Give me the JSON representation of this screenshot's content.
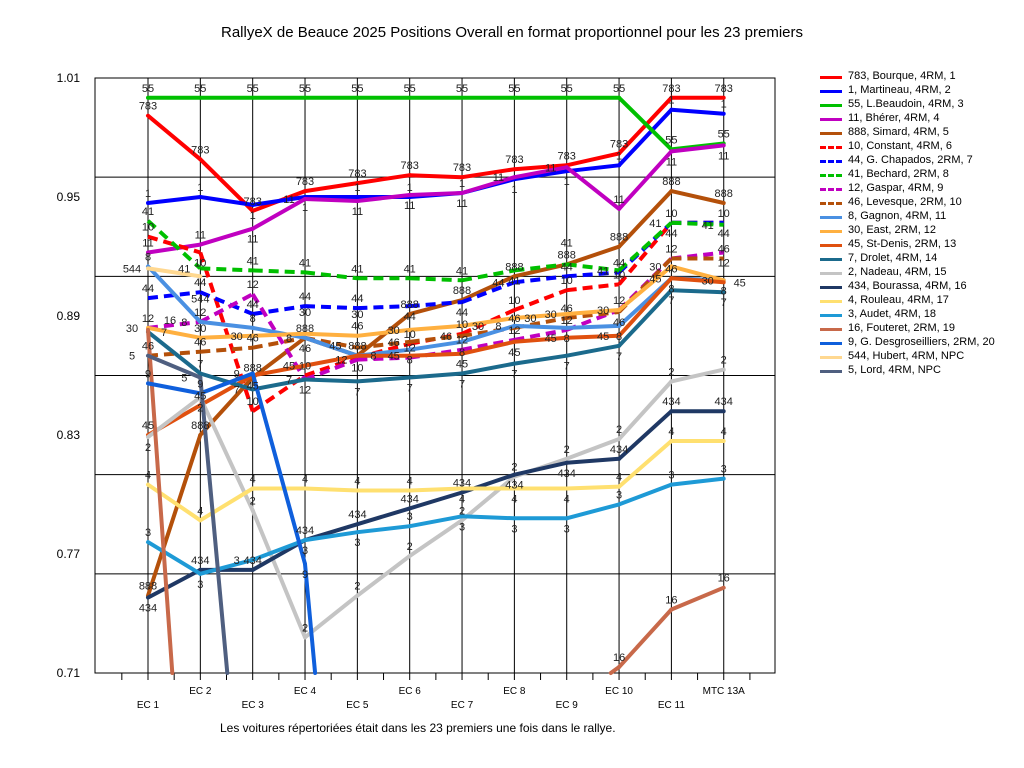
{
  "chart_data": {
    "type": "line",
    "title": "RallyeX de Beauce 2025  Positions Overall en format proportionnel pour les 23 premiers",
    "footnote": "Les voitures répertoriées était dans les 23 premiers une fois dans le rallye.",
    "xlabel": "",
    "ylabel": "",
    "categories": [
      "EC 1",
      "EC 2",
      "EC 3",
      "EC 4",
      "EC 5",
      "EC 6",
      "EC 7",
      "EC 8",
      "EC 9",
      "EC 10",
      "EC 11",
      "MTC 13A"
    ],
    "ylim": [
      0.71,
      1.01
    ],
    "y_ticks": [
      "1.01",
      "0.95",
      "0.89",
      "0.83",
      "0.77",
      "0.71"
    ],
    "grid": true,
    "legend_position": "right",
    "series": [
      {
        "name": "783, Bourque, 4RM, 1",
        "car": "783",
        "color": "#ff0000",
        "dash": false,
        "values": [
          0.991,
          0.969,
          0.943,
          0.953,
          0.957,
          0.961,
          0.96,
          0.964,
          0.966,
          0.972,
          1.0,
          1.0
        ]
      },
      {
        "name": "1, Martineau, 4RM, 2",
        "car": "1",
        "color": "#0000ff",
        "dash": false,
        "values": [
          0.947,
          0.95,
          0.946,
          0.95,
          0.95,
          0.95,
          0.952,
          0.959,
          0.963,
          0.966,
          0.994,
          0.992
        ]
      },
      {
        "name": "55, L.Beaudoin, 4RM, 3",
        "car": "55",
        "color": "#00c000",
        "dash": false,
        "values": [
          1.0,
          1.0,
          1.0,
          1.0,
          1.0,
          1.0,
          1.0,
          1.0,
          1.0,
          1.0,
          0.974,
          0.977
        ]
      },
      {
        "name": "11, Bhérer, 4RM, 4",
        "car": "11",
        "color": "#c000c0",
        "dash": false,
        "values": [
          0.922,
          0.926,
          0.934,
          0.949,
          0.948,
          0.951,
          0.952,
          0.96,
          0.965,
          0.944,
          0.973,
          0.976
        ]
      },
      {
        "name": "888, Simard, 4RM, 5",
        "car": "888",
        "color": "#b4500a",
        "dash": false,
        "values": [
          0.749,
          0.83,
          0.859,
          0.879,
          0.87,
          0.891,
          0.898,
          0.91,
          0.916,
          0.925,
          0.953,
          0.947
        ]
      },
      {
        "name": "10, Constant, 4RM, 6",
        "car": "10",
        "color": "#ff0000",
        "dash": true,
        "values": [
          0.93,
          0.922,
          0.842,
          0.86,
          0.869,
          0.876,
          0.881,
          0.893,
          0.903,
          0.906,
          0.937,
          0.937
        ]
      },
      {
        "name": "44, G. Chapados, 2RM, 7",
        "car": "44",
        "color": "#0000ff",
        "dash": true,
        "values": [
          0.899,
          0.902,
          0.891,
          0.895,
          0.894,
          0.895,
          0.897,
          0.907,
          0.91,
          0.912,
          0.937,
          0.937
        ]
      },
      {
        "name": "41, Bechard, 2RM, 8",
        "car": "41",
        "color": "#00c000",
        "dash": true,
        "values": [
          0.938,
          0.914,
          0.913,
          0.912,
          0.909,
          0.909,
          0.908,
          0.913,
          0.916,
          0.913,
          0.937,
          0.936
        ]
      },
      {
        "name": "12, Gaspar, 4RM, 9",
        "car": "12",
        "color": "#c000c0",
        "dash": true,
        "values": [
          0.884,
          0.887,
          0.901,
          0.858,
          0.868,
          0.869,
          0.873,
          0.878,
          0.883,
          0.893,
          0.919,
          0.922
        ]
      },
      {
        "name": "46, Levesque, 2RM, 10",
        "car": "46",
        "color": "#b4500a",
        "dash": true,
        "values": [
          0.87,
          0.872,
          0.874,
          0.879,
          0.874,
          0.877,
          0.88,
          0.884,
          0.889,
          0.892,
          0.919,
          0.919
        ]
      },
      {
        "name": "8, Gagnon, 4RM, 11",
        "car": "8",
        "color": "#4a90e2",
        "dash": false,
        "values": [
          0.915,
          0.887,
          0.884,
          0.879,
          0.87,
          0.873,
          0.877,
          0.885,
          0.884,
          0.885,
          0.909,
          0.908
        ]
      },
      {
        "name": "30, East, 2RM, 12",
        "car": "30",
        "color": "#ffb040",
        "dash": false,
        "values": [
          0.884,
          0.879,
          0.88,
          0.881,
          0.88,
          0.883,
          0.885,
          0.889,
          0.891,
          0.893,
          0.915,
          0.908
        ]
      },
      {
        "name": "45, St-Denis, 2RM, 13",
        "car": "45",
        "color": "#e0500f",
        "dash": false,
        "values": [
          0.83,
          0.845,
          0.86,
          0.865,
          0.87,
          0.87,
          0.871,
          0.877,
          0.879,
          0.88,
          0.909,
          0.907
        ]
      },
      {
        "name": "7, Drolet, 4RM, 14",
        "car": "7",
        "color": "#1b6a8c",
        "dash": false,
        "values": [
          0.882,
          0.861,
          0.853,
          0.858,
          0.857,
          0.859,
          0.861,
          0.866,
          0.87,
          0.875,
          0.903,
          0.902
        ]
      },
      {
        "name": "2, Nadeau, 4RM, 15",
        "car": "2",
        "color": "#c4c4c4",
        "dash": false,
        "values": [
          0.829,
          0.849,
          0.792,
          0.728,
          0.749,
          0.769,
          0.787,
          0.809,
          0.818,
          0.828,
          0.857,
          0.863
        ]
      },
      {
        "name": "434, Bourassa, 4RM, 16",
        "car": "434",
        "color": "#1f3864",
        "dash": false,
        "values": [
          0.748,
          0.762,
          0.762,
          0.777,
          0.785,
          0.793,
          0.801,
          0.81,
          0.816,
          0.818,
          0.842,
          0.842
        ]
      },
      {
        "name": "4, Rouleau, 4RM, 17",
        "car": "4",
        "color": "#ffe070",
        "dash": false,
        "values": [
          0.805,
          0.787,
          0.803,
          0.803,
          0.802,
          0.802,
          0.803,
          0.803,
          0.803,
          0.804,
          0.827,
          0.827
        ]
      },
      {
        "name": "3, Audet, 4RM, 18",
        "car": "3",
        "color": "#1e9ad6",
        "dash": false,
        "values": [
          0.776,
          0.76,
          0.767,
          0.777,
          0.781,
          0.784,
          0.789,
          0.788,
          0.788,
          0.795,
          0.805,
          0.808
        ]
      },
      {
        "name": "16, Fouteret, 2RM, 19",
        "car": "16",
        "color": "#c8694a",
        "dash": false,
        "values": [
          0.883,
          0.51,
          null,
          null,
          null,
          null,
          null,
          null,
          0.694,
          0.713,
          0.742,
          0.753
        ]
      },
      {
        "name": "9, G. Desgroseilliers, 2RM, 20",
        "car": "9",
        "color": "#0f5fdc",
        "dash": false,
        "values": [
          0.856,
          0.851,
          0.861,
          0.765,
          0.48,
          null,
          null,
          null,
          null,
          null,
          null,
          null
        ]
      },
      {
        "name": "544, Hubert, 4RM,  NPC",
        "car": "544",
        "color": "#ffd890",
        "dash": false,
        "values": [
          0.914,
          0.91,
          null,
          null,
          null,
          null,
          null,
          null,
          null,
          null,
          null,
          null
        ]
      },
      {
        "name": "5, Lord, 4RM,  NPC",
        "car": "5",
        "color": "#4f5f80",
        "dash": false,
        "values": [
          0.87,
          0.859,
          0.57,
          null,
          null,
          null,
          null,
          null,
          null,
          null,
          null,
          null
        ]
      }
    ]
  }
}
